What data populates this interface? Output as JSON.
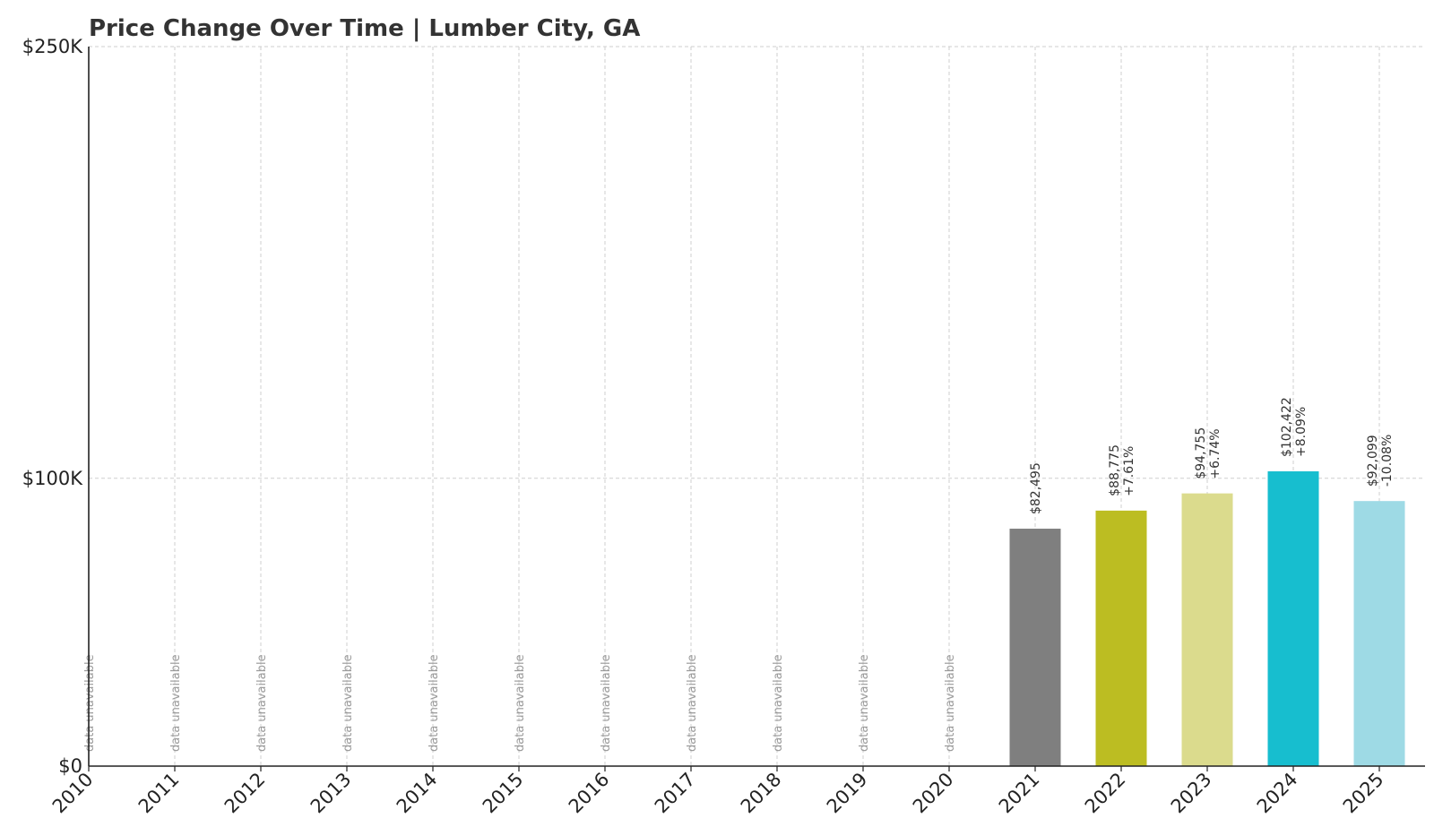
{
  "chart_data": {
    "type": "bar",
    "title": "Price Change Over Time | Lumber City, GA",
    "xlabel": "",
    "ylabel": "",
    "ylim": [
      0,
      250000
    ],
    "yticks": [
      {
        "value": 0,
        "label": "$0"
      },
      {
        "value": 100000,
        "label": "$100K"
      },
      {
        "value": 250000,
        "label": "$250K"
      }
    ],
    "grid": true,
    "unavailable_label": "data unavailable",
    "categories": [
      "2010",
      "2011",
      "2012",
      "2013",
      "2014",
      "2015",
      "2016",
      "2017",
      "2018",
      "2019",
      "2020",
      "2021",
      "2022",
      "2023",
      "2024",
      "2025"
    ],
    "values": [
      null,
      null,
      null,
      null,
      null,
      null,
      null,
      null,
      null,
      null,
      null,
      82495,
      88775,
      94755,
      102422,
      92099
    ],
    "value_labels": [
      null,
      null,
      null,
      null,
      null,
      null,
      null,
      null,
      null,
      null,
      null,
      "$82,495",
      "$88,775",
      "$94,755",
      "$102,422",
      "$92,099"
    ],
    "change_labels": [
      null,
      null,
      null,
      null,
      null,
      null,
      null,
      null,
      null,
      null,
      null,
      null,
      "+7.61%",
      "+6.74%",
      "+8.09%",
      "-10.08%"
    ],
    "colors": [
      null,
      null,
      null,
      null,
      null,
      null,
      null,
      null,
      null,
      null,
      null,
      "#7f7f7f",
      "#bcbd22",
      "#dbdb8d",
      "#17becf",
      "#9edae5"
    ]
  }
}
